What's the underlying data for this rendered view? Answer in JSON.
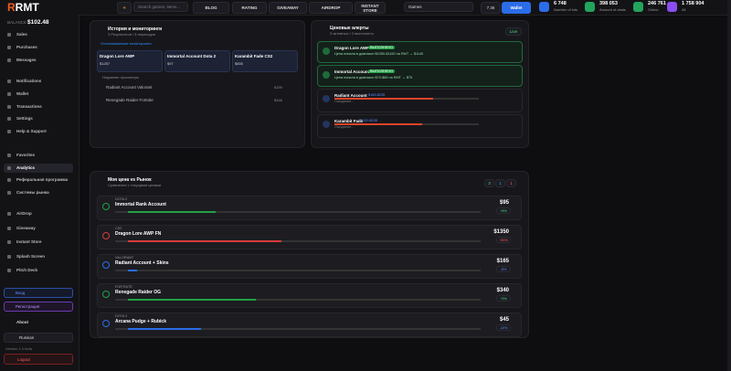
{
  "header": {
    "logo": "RMT",
    "balance_label": "BALANCE",
    "balance": "$102.48",
    "search_placeholder": "Search games, items...",
    "nav": [
      "BLOG",
      "RATING",
      "GIVEAWAY",
      "AIRDROP",
      "INSTANT STORE"
    ],
    "games_select": "Games",
    "rate": "7.36",
    "wallet": "Wallet",
    "stats": [
      {
        "value": "6 748",
        "label": "Number of lots"
      },
      {
        "value": "398 053",
        "label": "Amount of deals"
      },
      {
        "value": "246 761",
        "label": "Online"
      },
      {
        "value": "1 758 904",
        "label": "All"
      }
    ]
  },
  "sidebar": {
    "groups": [
      [
        "Sales",
        "Purchases",
        "Messages"
      ],
      [
        "Notifications",
        "Wallet",
        "Transactions",
        "Settings",
        "Help & Support"
      ],
      [
        "Favorites",
        "Analytics",
        "Реферальная программа",
        "Системы рынка"
      ],
      [
        "AirDrop",
        "Giveaway",
        "Instant Store",
        "Splash Screen",
        "Pitch Deck"
      ]
    ],
    "login": "Вход",
    "register": "Регистрация",
    "about": "About",
    "language": "Russian",
    "version": "Version 1.0 beta",
    "logout": "Logout"
  },
  "history": {
    "title": "История и мониторинги",
    "subtitle": "3 Результатов / 3 переходов",
    "tracked_label": "Отслеживаемые мониторинги",
    "cards": [
      {
        "name": "Dragon Lore AWP",
        "price": "$1257"
      },
      {
        "name": "Immortal Account Dota 2",
        "price": "$97"
      },
      {
        "name": "Karambit Fade CS2",
        "price": "$855"
      }
    ],
    "recent_label": "Недавние просмотры",
    "recent": [
      {
        "name": "Radiant Account Valorant",
        "price": "$159"
      },
      {
        "name": "Renegade Raider Fortnite",
        "price": "$348"
      }
    ]
  },
  "alerts": {
    "title": "Ценовые алерты",
    "subtitle": "3 активных / 2 выполнено",
    "live": "Live",
    "items": [
      {
        "name": "Dragon Lore AWP",
        "status": "ВЫПОЛНЕНО",
        "text": "Цена попала в диапазон $1050-$1150 на RMT → $1140"
      },
      {
        "name": "Immortal Account",
        "status": "ВЫПОЛНЕНО",
        "text": "Цена попала в диапазон $70-$85 на RMT → $75"
      },
      {
        "name": "Radiant Account",
        "status": "$189-$235",
        "text": "Ожидание..."
      },
      {
        "name": "Karambit Fade",
        "status": "$120-$135",
        "text": "Ожидание..."
      }
    ]
  },
  "compare": {
    "title": "Моя цена vs Рынок",
    "subtitle": "Сравнение с текущими ценами",
    "badges": [
      "3",
      "1",
      "1"
    ],
    "rows": [
      {
        "game": "DOTA 2",
        "name": "Immortal Rank Account",
        "price": "$95",
        "change": "+8%"
      },
      {
        "game": "CS2",
        "name": "Dragon Lore AWP FN",
        "price": "$1350",
        "change": "+35%"
      },
      {
        "game": "VALORANT",
        "name": "Radiant Account + Skins",
        "price": "$165",
        "change": "-5%"
      },
      {
        "game": "FORTNITE",
        "name": "Renegade Raider OG",
        "price": "$340",
        "change": "+3%"
      },
      {
        "game": "DOTA 2",
        "name": "Arcana Pudge + Rubick",
        "price": "$45",
        "change": "-10%"
      }
    ]
  }
}
